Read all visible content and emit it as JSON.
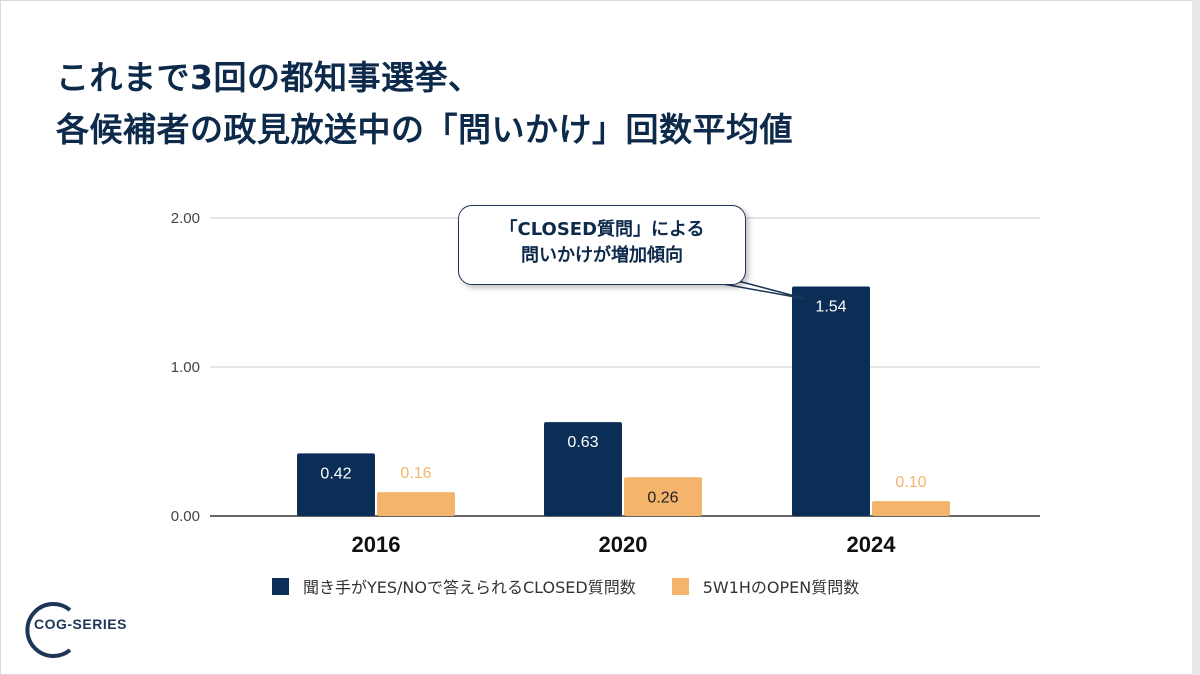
{
  "slide": {
    "title_line1": "これまで3回の都知事選挙、",
    "title_line2": "各候補者の政見放送中の「問いかけ」回数平均値",
    "callout_line1": "「CLOSED質問」による",
    "callout_line2": "問いかけが増加傾向",
    "logo_label": "COG-SERIES"
  },
  "chart_data": {
    "type": "bar",
    "categories": [
      "2016",
      "2020",
      "2024"
    ],
    "series": [
      {
        "name": "聞き手がYES/NOで答えられるCLOSED質問数",
        "values": [
          0.42,
          0.63,
          1.54
        ],
        "labels": [
          "0.42",
          "0.63",
          "1.54"
        ],
        "color": "#0b2e57"
      },
      {
        "name": "5W1HのOPEN質問数",
        "values": [
          0.16,
          0.26,
          0.1
        ],
        "labels": [
          "0.16",
          "0.26",
          "0.10"
        ],
        "color": "#f4b46b"
      }
    ],
    "yticks": [
      "0.00",
      "1.00",
      "2.00"
    ],
    "ylim": [
      0,
      2
    ],
    "grid": true,
    "legend": "bottom"
  }
}
